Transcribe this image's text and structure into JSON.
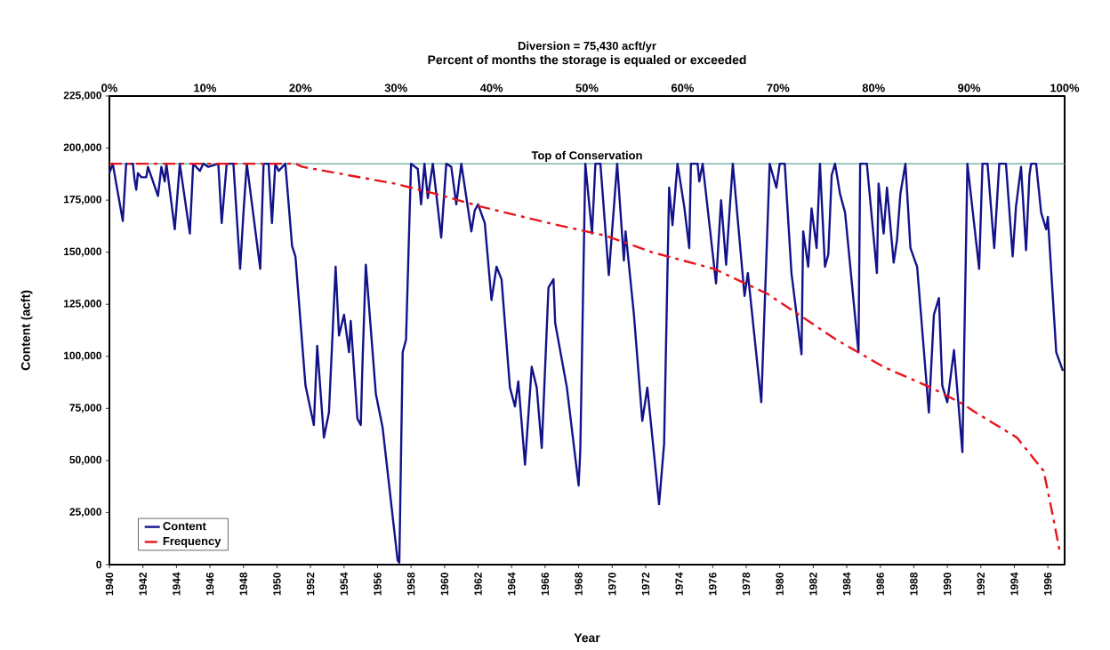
{
  "chart_data": {
    "type": "line",
    "title": "Diversion = 75,430 acft/yr",
    "x2label": "Percent of months the storage is equaled or exceeded",
    "xlabel": "Year",
    "ylabel": "Content (acft)",
    "xlim": [
      1940,
      1997
    ],
    "xticks": [
      1940,
      1942,
      1944,
      1946,
      1948,
      1950,
      1952,
      1954,
      1956,
      1958,
      1960,
      1962,
      1964,
      1966,
      1968,
      1970,
      1972,
      1974,
      1976,
      1978,
      1980,
      1982,
      1984,
      1986,
      1988,
      1990,
      1992,
      1994,
      1996
    ],
    "x2lim": [
      0,
      100
    ],
    "x2ticks": [
      {
        "value": 0,
        "label": "0%"
      },
      {
        "value": 10,
        "label": "10%"
      },
      {
        "value": 20,
        "label": "20%"
      },
      {
        "value": 30,
        "label": "30%"
      },
      {
        "value": 40,
        "label": "40%"
      },
      {
        "value": 50,
        "label": "50%"
      },
      {
        "value": 60,
        "label": "60%"
      },
      {
        "value": 70,
        "label": "70%"
      },
      {
        "value": 80,
        "label": "80%"
      },
      {
        "value": 90,
        "label": "90%"
      },
      {
        "value": 100,
        "label": "100%"
      }
    ],
    "ylim": [
      0,
      225000
    ],
    "yticks": [
      {
        "value": 0,
        "label": "0"
      },
      {
        "value": 25000,
        "label": "25,000"
      },
      {
        "value": 50000,
        "label": "50,000"
      },
      {
        "value": 75000,
        "label": "75,000"
      },
      {
        "value": 100000,
        "label": "100,000"
      },
      {
        "value": 125000,
        "label": "125,000"
      },
      {
        "value": 150000,
        "label": "150,000"
      },
      {
        "value": 175000,
        "label": "175,000"
      },
      {
        "value": 200000,
        "label": "200,000"
      },
      {
        "value": 225000,
        "label": "225,000"
      }
    ],
    "legend": "bottom left",
    "ref_lines": [
      {
        "axis": "y",
        "value": 192500,
        "label": "Top of Conservation",
        "color": "#5fa89a"
      }
    ],
    "series": [
      {
        "name": "Content",
        "color": "#12128a",
        "line_style": "solid",
        "x": [
          1940.0,
          1940.2,
          1940.8,
          1941.0,
          1941.4,
          1941.5,
          1941.6,
          1941.7,
          1941.9,
          1942.2,
          1942.3,
          1942.9,
          1943.1,
          1943.3,
          1943.4,
          1943.9,
          1944.2,
          1944.8,
          1945.0,
          1945.4,
          1945.6,
          1945.9,
          1946.5,
          1946.7,
          1947.0,
          1947.4,
          1947.8,
          1948.0,
          1948.2,
          1949.0,
          1949.2,
          1949.5,
          1949.7,
          1949.9,
          1950.1,
          1950.5,
          1950.9,
          1951.1,
          1951.7,
          1952.2,
          1952.4,
          1952.8,
          1953.1,
          1953.5,
          1953.7,
          1954.0,
          1954.3,
          1954.4,
          1954.8,
          1955.0,
          1955.1,
          1955.3,
          1955.9,
          1956.3,
          1957.2,
          1957.3,
          1957.5,
          1957.7,
          1958.0,
          1958.4,
          1958.6,
          1958.8,
          1959.0,
          1959.3,
          1959.8,
          1960.1,
          1960.4,
          1960.7,
          1961.0,
          1961.6,
          1961.8,
          1962.0,
          1962.4,
          1962.8,
          1963.1,
          1963.4,
          1963.9,
          1964.2,
          1964.4,
          1964.8,
          1965.2,
          1965.5,
          1965.8,
          1966.2,
          1966.5,
          1966.6,
          1967.3,
          1968.0,
          1968.1,
          1968.4,
          1968.8,
          1969.0,
          1969.3,
          1969.8,
          1970.3,
          1970.7,
          1970.8,
          1971.3,
          1971.8,
          1972.1,
          1972.8,
          1973.1,
          1973.4,
          1973.6,
          1973.9,
          1974.3,
          1974.6,
          1974.7,
          1975.1,
          1975.2,
          1975.4,
          1976.2,
          1976.5,
          1976.8,
          1977.0,
          1977.2,
          1977.9,
          1978.1,
          1978.9,
          1979.4,
          1979.8,
          1980.0,
          1980.3,
          1980.7,
          1981.3,
          1981.4,
          1981.7,
          1981.9,
          1982.2,
          1982.4,
          1982.7,
          1982.9,
          1983.1,
          1983.3,
          1983.6,
          1983.9,
          1984.7,
          1984.8,
          1985.2,
          1985.8,
          1985.9,
          1986.2,
          1986.4,
          1986.8,
          1987.0,
          1987.2,
          1987.5,
          1987.8,
          1988.2,
          1988.9,
          1989.2,
          1989.5,
          1989.7,
          1990.0,
          1990.4,
          1990.9,
          1991.2,
          1991.9,
          1992.1,
          1992.4,
          1992.8,
          1993.1,
          1993.5,
          1993.9,
          1994.1,
          1994.4,
          1994.7,
          1994.9,
          1995.0,
          1995.3,
          1995.6,
          1995.9,
          1996.0,
          1996.5,
          1996.9
        ],
        "values": [
          188000,
          192500,
          165000,
          192500,
          192500,
          185000,
          180000,
          188000,
          186000,
          186000,
          191000,
          177000,
          191000,
          184000,
          192500,
          161000,
          192500,
          159000,
          192500,
          189000,
          192500,
          191000,
          192500,
          164000,
          192500,
          192500,
          142000,
          169000,
          192500,
          142000,
          192500,
          192500,
          164000,
          192500,
          189000,
          192500,
          153000,
          148000,
          86000,
          67000,
          105000,
          61000,
          73000,
          143000,
          110000,
          120000,
          102000,
          117000,
          70000,
          67000,
          96000,
          144000,
          82000,
          66000,
          2000,
          1000,
          102000,
          108000,
          192500,
          190000,
          173000,
          192500,
          176000,
          192500,
          157000,
          192500,
          191000,
          173000,
          192500,
          160000,
          170000,
          173000,
          164000,
          127000,
          143000,
          137000,
          85000,
          76000,
          88000,
          48000,
          95000,
          85000,
          56000,
          133000,
          137000,
          116000,
          85000,
          38000,
          55000,
          192500,
          159000,
          192500,
          192500,
          139000,
          192500,
          146000,
          160000,
          120000,
          69000,
          85000,
          29000,
          58000,
          181000,
          163000,
          192500,
          172000,
          152000,
          192500,
          192500,
          184000,
          192500,
          135000,
          175000,
          144000,
          169000,
          192500,
          129000,
          140000,
          78000,
          192500,
          181000,
          192500,
          192500,
          140000,
          101000,
          160000,
          143000,
          171000,
          152000,
          192500,
          143000,
          149000,
          187000,
          192500,
          178000,
          169000,
          102000,
          192500,
          192500,
          140000,
          183000,
          159000,
          181000,
          145000,
          156000,
          178000,
          192500,
          152000,
          143000,
          73000,
          120000,
          128000,
          86000,
          78000,
          103000,
          54000,
          192500,
          142000,
          192500,
          192500,
          152000,
          192500,
          192500,
          148000,
          172000,
          191000,
          151000,
          187000,
          192500,
          192500,
          169000,
          161000,
          167000,
          102000,
          93000
        ]
      },
      {
        "name": "Frequency",
        "color": "#e8141c",
        "line_style": "dashdot",
        "axis": "x2",
        "x": [
          0,
          19.5,
          20.2,
          29.8,
          34.2,
          38.8,
          46,
          51.9,
          56.8,
          63.3,
          68.9,
          76.1,
          81,
          86,
          89.4,
          90.7,
          95,
          97.8,
          98.7,
          99.5
        ],
        "values": [
          192500,
          192500,
          191000,
          183000,
          178000,
          172000,
          164000,
          158000,
          150000,
          142000,
          130000,
          108000,
          95000,
          85000,
          77000,
          73000,
          61000,
          45000,
          25000,
          6000
        ]
      }
    ]
  }
}
